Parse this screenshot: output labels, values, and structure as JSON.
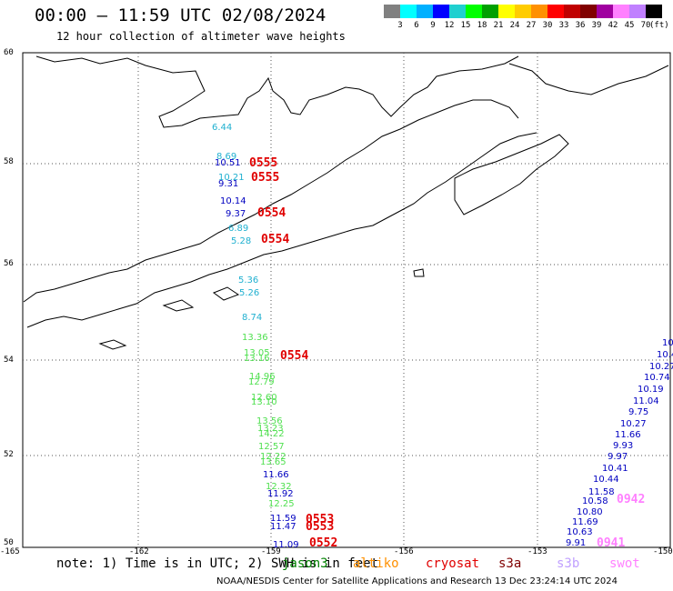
{
  "header": {
    "title": "00:00 — 11:59 UTC 02/08/2024",
    "subtitle": "12 hour collection of altimeter wave heights"
  },
  "legend": {
    "colors": [
      "#808080",
      "#00ffff",
      "#00b0ff",
      "#0000ff",
      "#20d0d0",
      "#00ff00",
      "#00a000",
      "#ffff00",
      "#ffcc00",
      "#ff9000",
      "#ff0000",
      "#c00000",
      "#800000",
      "#a000a0",
      "#ff80ff",
      "#c080ff",
      "#000000"
    ],
    "ticks": [
      "3",
      "6",
      "9",
      "12",
      "15",
      "18",
      "21",
      "24",
      "27",
      "30",
      "33",
      "36",
      "39",
      "42",
      "45",
      "70",
      "(ft)"
    ]
  },
  "axes": {
    "lat_labels": [
      "60",
      "58",
      "56",
      "54",
      "52",
      "50"
    ],
    "lon_labels": [
      "-165",
      "-162",
      "-159",
      "-156",
      "-153",
      "-150"
    ]
  },
  "passes": [
    {
      "label": "0555",
      "color": "#e00000"
    },
    {
      "label": "0555",
      "color": "#e00000"
    },
    {
      "label": "0554",
      "color": "#e00000"
    },
    {
      "label": "0554",
      "color": "#e00000"
    },
    {
      "label": "0554",
      "color": "#e00000"
    },
    {
      "label": "0553",
      "color": "#e00000"
    },
    {
      "label": "0553",
      "color": "#e00000"
    },
    {
      "label": "0552",
      "color": "#e00000"
    },
    {
      "label": "0942",
      "color": "#ff80ff"
    },
    {
      "label": "0941",
      "color": "#ff80ff"
    }
  ],
  "track_values": [
    {
      "v": "6.44",
      "c": "#20b0d0"
    },
    {
      "v": "8.69",
      "c": "#20b0d0"
    },
    {
      "v": "10.51",
      "c": "#0000c0"
    },
    {
      "v": "10.21",
      "c": "#20b0d0"
    },
    {
      "v": "9.31",
      "c": "#0000c0"
    },
    {
      "v": "10.14",
      "c": "#0000c0"
    },
    {
      "v": "9.37",
      "c": "#0000c0"
    },
    {
      "v": "6.89",
      "c": "#20b0d0"
    },
    {
      "v": "5.28",
      "c": "#20b0d0"
    },
    {
      "v": "5.36",
      "c": "#20b0d0"
    },
    {
      "v": "5.26",
      "c": "#20b0d0"
    },
    {
      "v": "8.74",
      "c": "#20b0d0"
    },
    {
      "v": "13.36",
      "c": "#50e050"
    },
    {
      "v": "13.05",
      "c": "#50e050"
    },
    {
      "v": "13.16",
      "c": "#50e050"
    },
    {
      "v": "14.96",
      "c": "#50e050"
    },
    {
      "v": "12.79",
      "c": "#50e050"
    },
    {
      "v": "12.60",
      "c": "#50e050"
    },
    {
      "v": "13.10",
      "c": "#50e050"
    },
    {
      "v": "13.56",
      "c": "#50e050"
    },
    {
      "v": "13.23",
      "c": "#50e050"
    },
    {
      "v": "14.22",
      "c": "#50e050"
    },
    {
      "v": "12.57",
      "c": "#50e050"
    },
    {
      "v": "12.22",
      "c": "#50e050"
    },
    {
      "v": "13.65",
      "c": "#50e050"
    },
    {
      "v": "11.66",
      "c": "#0000c0"
    },
    {
      "v": "12.32",
      "c": "#50e050"
    },
    {
      "v": "11.92",
      "c": "#0000c0"
    },
    {
      "v": "12.25",
      "c": "#50e050"
    },
    {
      "v": "11.59",
      "c": "#0000c0"
    },
    {
      "v": "11.47",
      "c": "#0000c0"
    },
    {
      "v": "11.09",
      "c": "#0000c0"
    }
  ],
  "east_values": [
    "10.",
    "10.4",
    "10.27",
    "10.74",
    "10.19",
    "11.04",
    "9.75",
    "10.27",
    "11.66",
    "9.93",
    "9.97",
    "10.41",
    "10.44",
    "11.58",
    "10.58",
    "10.80",
    "11.69",
    "10.63",
    "9.91"
  ],
  "footer": {
    "note": "note: 1) Time is in UTC; 2) SWH is in feet",
    "satellites": [
      {
        "name": "jason3",
        "color": "#008000"
      },
      {
        "name": "altiko",
        "color": "#ff9000"
      },
      {
        "name": "cryosat",
        "color": "#e00000"
      },
      {
        "name": "s3a",
        "color": "#800000"
      },
      {
        "name": "s3b",
        "color": "#c0a0ff"
      },
      {
        "name": "swot",
        "color": "#ff80ff"
      }
    ],
    "credit": "NOAA/NESDIS Center for Satellite Applications and Research   13 Dec 23:24:14 UTC 2024"
  }
}
